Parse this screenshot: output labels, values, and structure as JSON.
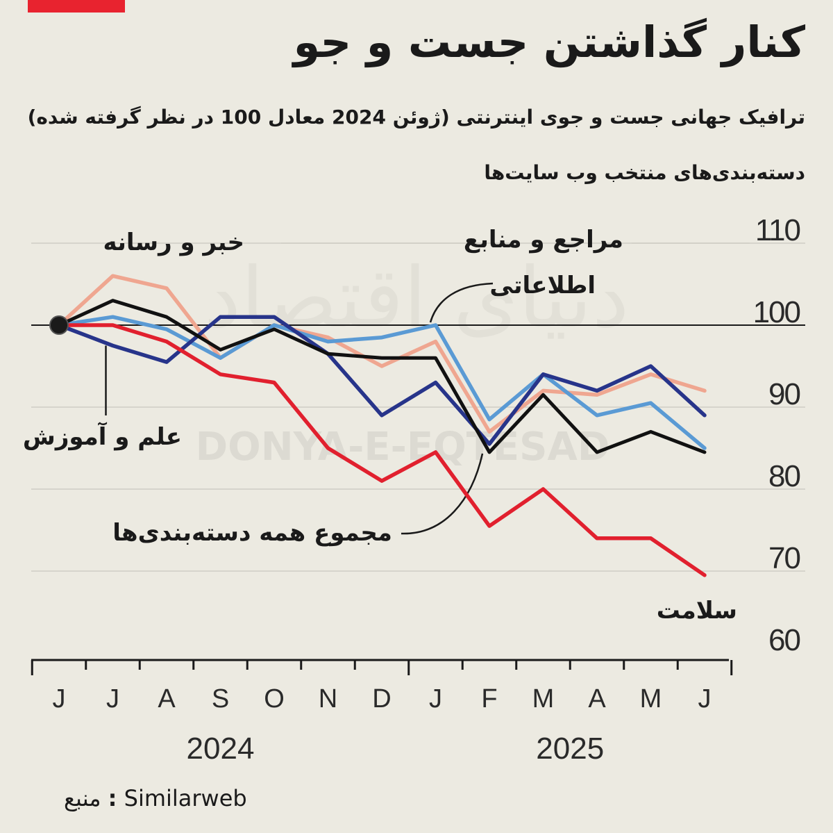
{
  "colors": {
    "accent": "#e8232f",
    "background": "#eceae1",
    "grid": "#cfcdc5",
    "axis": "#1a1a1a",
    "tick_text": "#2a2a2a",
    "watermark": "#d6d4cc"
  },
  "watermark": {
    "latin": "DONYA-E-EQTESAD",
    "persian": "دنیای اقتصاد"
  },
  "header": {
    "title": "کنار گذاشتن جست و جو",
    "subtitle": "ترافیک جهانی جست و جوی اینترنتی (ژوئن 2024 معادل 100 در نظر گرفته شده)",
    "section_label": "دسته‌بندی‌های منتخب وب سایت‌ها"
  },
  "footer": {
    "source_value": "Similarweb",
    "source_sep": ":",
    "source_label": "منبع"
  },
  "chart_data": {
    "type": "line",
    "categories": [
      "J",
      "J",
      "A",
      "S",
      "O",
      "N",
      "D",
      "J",
      "F",
      "M",
      "A",
      "M",
      "J"
    ],
    "year_labels": [
      {
        "label": "2024",
        "from_index": 0,
        "to_index": 6
      },
      {
        "label": "2025",
        "from_index": 7,
        "to_index": 12
      }
    ],
    "ylim": [
      60,
      110
    ],
    "yticks": [
      60,
      70,
      80,
      90,
      100,
      110
    ],
    "reference_line": 100,
    "grid": true,
    "y_axis_position": "right",
    "series": [
      {
        "name": "خبر و رسانه",
        "color": "#efa690",
        "values": [
          100,
          106,
          104.5,
          96,
          100,
          98.5,
          95,
          98,
          87,
          92,
          91.5,
          94,
          92
        ]
      },
      {
        "name": "مراجع و منابع اطلاعاتی",
        "color": "#5a9ad4",
        "values": [
          100,
          101,
          99.5,
          96,
          100,
          98,
          98.5,
          100,
          88.5,
          94,
          89,
          90.5,
          85
        ]
      },
      {
        "name": "علم و آموزش",
        "color": "#27348a",
        "values": [
          100,
          97.5,
          95.5,
          101,
          101,
          96.5,
          89,
          93,
          85.5,
          94,
          92,
          95,
          89
        ]
      },
      {
        "name": "مجموع همه دسته‌بندی‌ها",
        "color": "#111111",
        "values": [
          100,
          103,
          101,
          97,
          99.5,
          96.5,
          96,
          96,
          84.5,
          91.5,
          84.5,
          87,
          84.5
        ]
      },
      {
        "name": "سلامت",
        "color": "#e1202e",
        "values": [
          100,
          100,
          98,
          94,
          93,
          85,
          81,
          84.5,
          75.5,
          80,
          74,
          74,
          69.5
        ]
      }
    ],
    "annotations": [
      {
        "text": "خبر و رسانه",
        "series": "خبر و رسانه"
      },
      {
        "text": "مراجع و منابع",
        "series": "مراجع و منابع اطلاعاتی"
      },
      {
        "text": "اطلاعاتی",
        "series": "مراجع و منابع اطلاعاتی"
      },
      {
        "text": "علم و آموزش",
        "series": "علم و آموزش"
      },
      {
        "text": "مجموع همه دسته‌بندی‌ها",
        "series": "مجموع همه دسته‌بندی‌ها"
      },
      {
        "text": "سلامت",
        "series": "سلامت"
      }
    ]
  }
}
